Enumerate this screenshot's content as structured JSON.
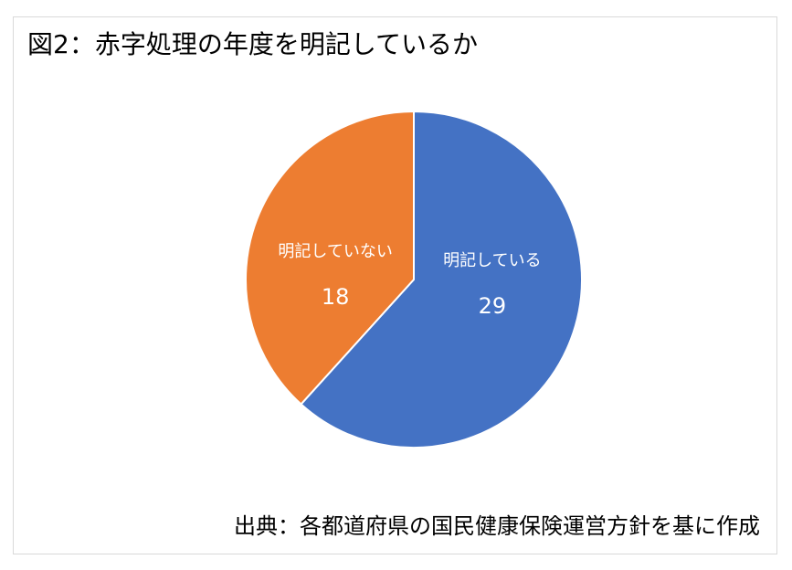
{
  "chart_data": {
    "type": "pie",
    "title": "図2：赤字処理の年度を明記しているか",
    "source": "出典：各都道府県の国民健康保険運営方針を基に作成",
    "categories": [
      "明記している",
      "明記していない"
    ],
    "values": [
      29,
      18
    ],
    "colors": [
      "#4472c4",
      "#ed7d31"
    ]
  }
}
